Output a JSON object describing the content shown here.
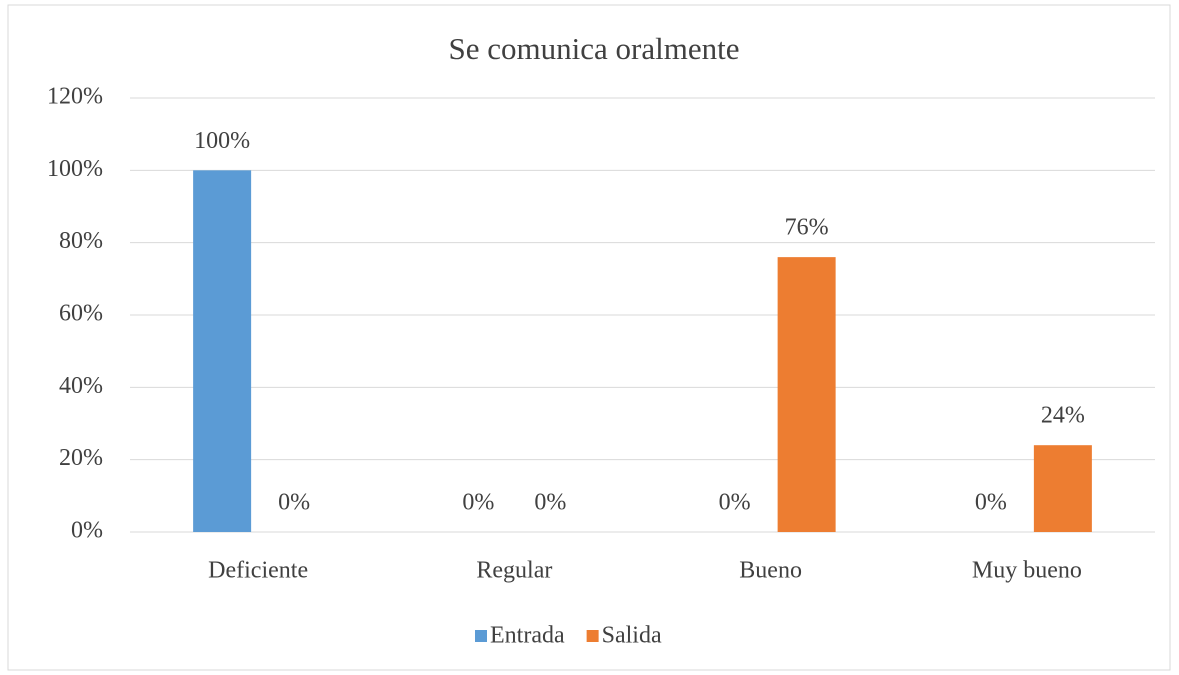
{
  "chart_data": {
    "type": "bar",
    "title": "Se comunica oralmente",
    "categories": [
      "Deficiente",
      "Regular",
      "Bueno",
      "Muy bueno"
    ],
    "series": [
      {
        "name": "Entrada",
        "color": "#5b9bd5",
        "values": [
          100,
          0,
          0,
          0
        ],
        "value_labels": [
          "100%",
          "0%",
          "0%",
          "0%"
        ]
      },
      {
        "name": "Salida",
        "color": "#ed7d31",
        "values": [
          0,
          0,
          76,
          24
        ],
        "value_labels": [
          "0%",
          "0%",
          "76%",
          "24%"
        ]
      }
    ],
    "ylim": [
      0,
      120
    ],
    "yticks": [
      {
        "value": 0,
        "label": "0%"
      },
      {
        "value": 20,
        "label": "20%"
      },
      {
        "value": 40,
        "label": "40%"
      },
      {
        "value": 60,
        "label": "60%"
      },
      {
        "value": 80,
        "label": "80%"
      },
      {
        "value": 100,
        "label": "100%"
      },
      {
        "value": 120,
        "label": "120%"
      }
    ],
    "grid": true,
    "legend": "bottom"
  }
}
